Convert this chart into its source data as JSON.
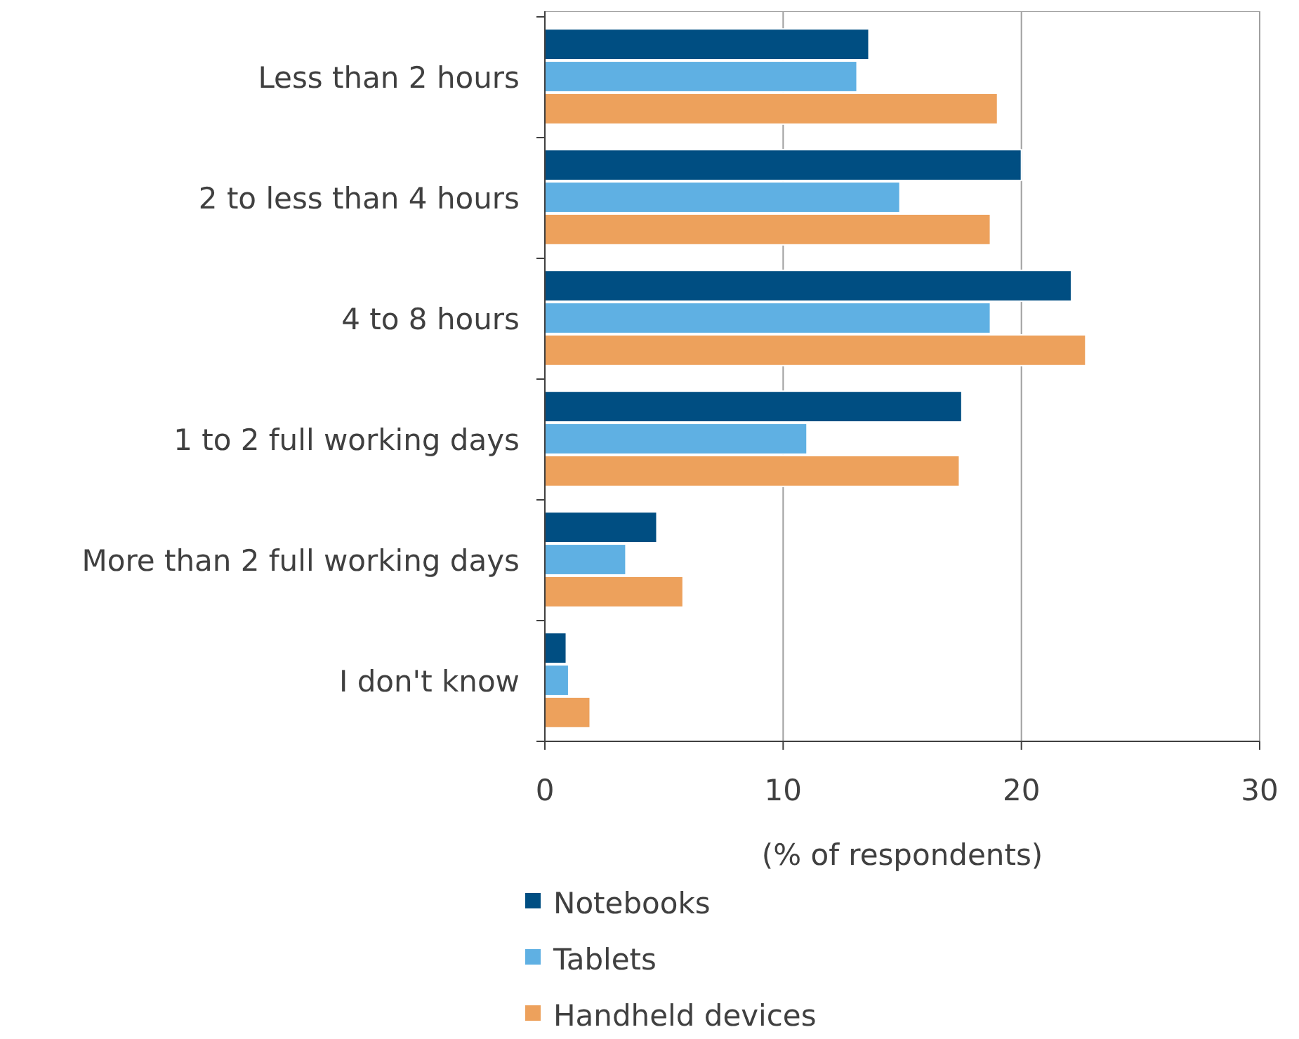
{
  "chart_data": {
    "type": "bar",
    "orientation": "horizontal",
    "categories": [
      "Less than 2 hours",
      "2 to less than 4 hours",
      "4 to 8 hours",
      "1 to 2 full working days",
      "More than 2 full working days",
      "I don't know"
    ],
    "series": [
      {
        "name": "Notebooks",
        "color": "#004e82",
        "values": [
          13.6,
          20.0,
          22.1,
          17.5,
          4.7,
          0.9
        ]
      },
      {
        "name": "Tablets",
        "color": "#5fb0e3",
        "values": [
          13.1,
          14.9,
          18.7,
          11.0,
          3.4,
          1.0
        ]
      },
      {
        "name": "Handheld devices",
        "color": "#eda15c",
        "values": [
          19.0,
          18.7,
          22.7,
          17.4,
          5.8,
          1.9
        ]
      }
    ],
    "xlabel": "(% of respondents)",
    "xlim": [
      0,
      30
    ],
    "xticks": [
      0,
      10,
      20,
      30
    ],
    "grid": "x",
    "legend": "bottom left"
  }
}
